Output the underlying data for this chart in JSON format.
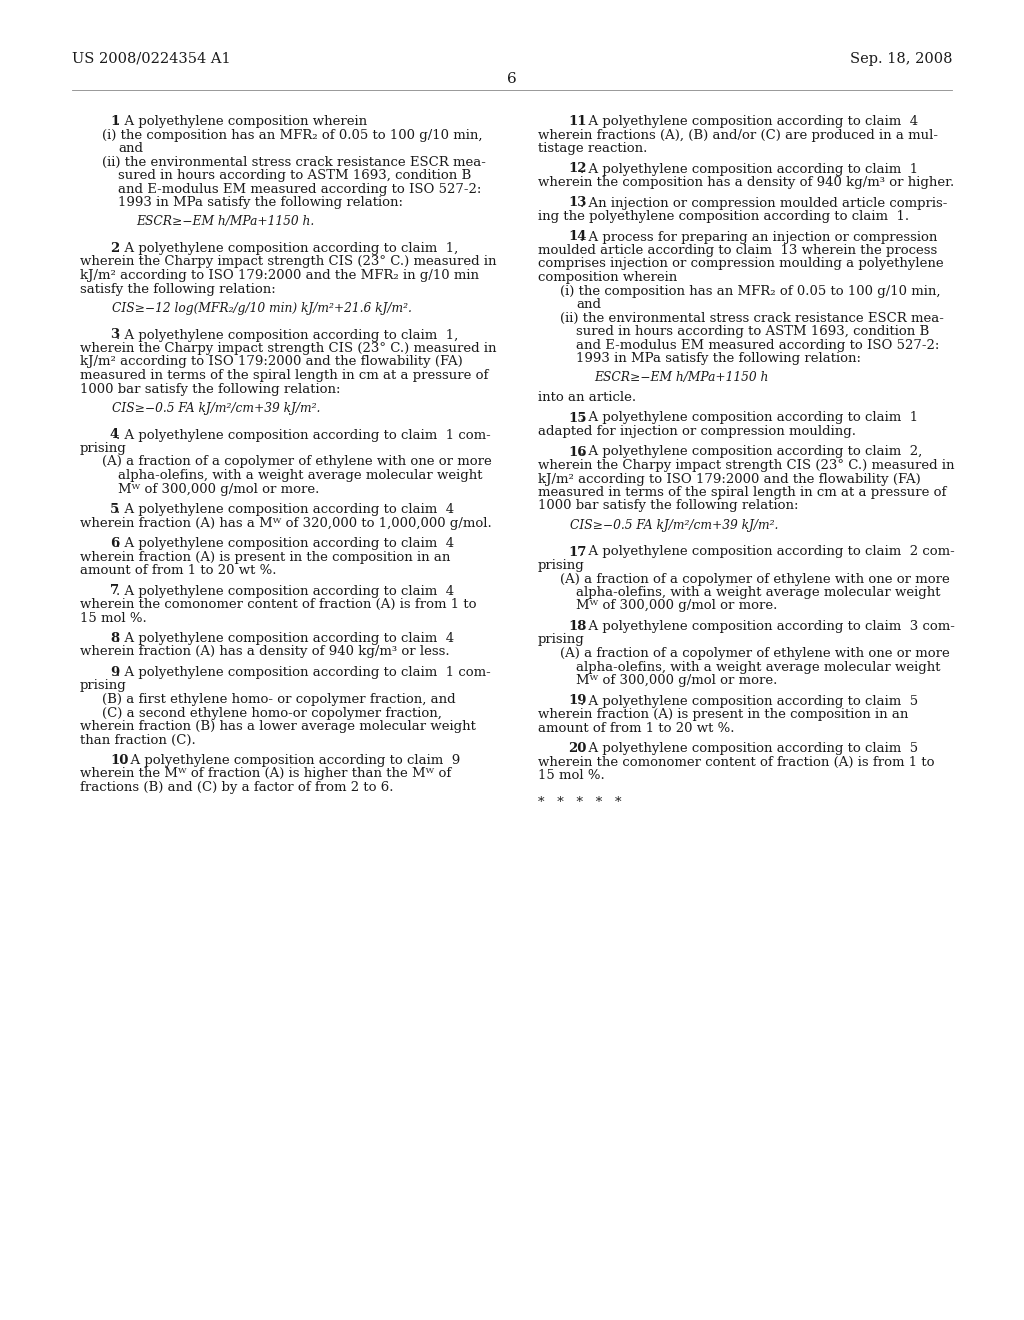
{
  "background_color": "#ffffff",
  "header_left": "US 2008/0224354 A1",
  "header_right": "Sep. 18, 2008",
  "page_number": "6"
}
